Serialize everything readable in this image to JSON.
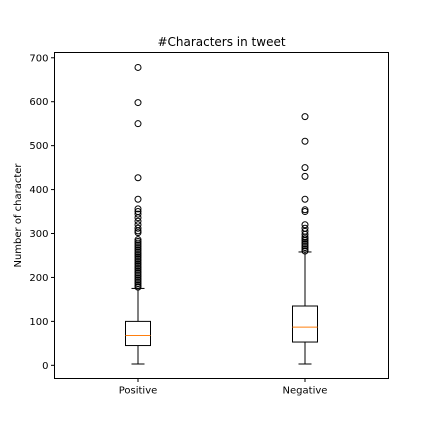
{
  "chart_data": {
    "type": "box",
    "title": "#Characters in tweet",
    "xlabel": "",
    "ylabel": "Number of character",
    "ylim": [
      -30,
      712
    ],
    "yticks": [
      0,
      100,
      200,
      300,
      400,
      500,
      600,
      700
    ],
    "grid": false,
    "categories": [
      "Positive",
      "Negative"
    ],
    "boxes": [
      {
        "category": "Positive",
        "whisker_low": 3,
        "q1": 45,
        "median": 68,
        "q3": 100,
        "whisker_high": 175,
        "fliers": [
          178,
          182,
          186,
          190,
          194,
          198,
          202,
          206,
          210,
          214,
          218,
          222,
          226,
          230,
          234,
          238,
          242,
          246,
          250,
          254,
          258,
          262,
          266,
          270,
          274,
          278,
          282,
          286,
          302,
          306,
          312,
          320,
          328,
          336,
          344,
          350,
          356,
          378,
          427,
          550,
          598,
          678
        ]
      },
      {
        "category": "Negative",
        "whisker_low": 3,
        "q1": 53,
        "median": 87,
        "q3": 135,
        "whisker_high": 258,
        "fliers": [
          260,
          264,
          268,
          272,
          276,
          280,
          284,
          288,
          292,
          298,
          305,
          312,
          320,
          350,
          354,
          378,
          430,
          450,
          510,
          566
        ]
      }
    ],
    "colors": {
      "box": "#000000",
      "median": "#ff7f0e",
      "flier": "#000000"
    }
  }
}
